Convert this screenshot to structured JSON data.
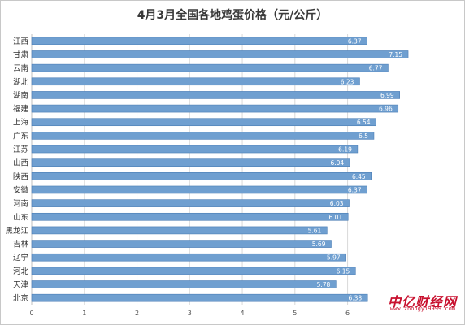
{
  "chart_data": {
    "type": "bar",
    "orientation": "horizontal",
    "title": "4月3月全国各地鸡蛋价格（元/公斤）",
    "categories": [
      "江西",
      "甘肃",
      "云南",
      "湖北",
      "湖南",
      "福建",
      "上海",
      "广东",
      "江苏",
      "山西",
      "陕西",
      "安徽",
      "河南",
      "山东",
      "黑龙江",
      "吉林",
      "辽宁",
      "河北",
      "天津",
      "北京"
    ],
    "values": [
      6.37,
      7.15,
      6.77,
      6.23,
      6.99,
      6.96,
      6.54,
      6.5,
      6.19,
      6.04,
      6.45,
      6.37,
      6.03,
      6.01,
      5.61,
      5.69,
      5.97,
      6.15,
      5.78,
      6.38
    ],
    "data_labels": [
      "6.37",
      "7.15",
      "6.77",
      "6.23",
      "6.99",
      "6.96",
      "6.54",
      "6.5",
      "6.19",
      "6.04",
      "6.45",
      "6.37",
      "6.03",
      "6.01",
      "5.61",
      "5.69",
      "5.97",
      "6.15",
      "5.78",
      "6.38"
    ],
    "x_ticks": [
      "0",
      "1",
      "2",
      "3",
      "4",
      "5",
      "6"
    ],
    "xlim": [
      0,
      7.35
    ],
    "grid": true,
    "bar_color": "#6f9fd0",
    "bar_edge_color": "#4a7db5",
    "grid_color": "#d9d9d9"
  },
  "watermark": {
    "main": "中亿财经网",
    "url": "www.zhongyi9999.com",
    "color": "#c8102e"
  }
}
